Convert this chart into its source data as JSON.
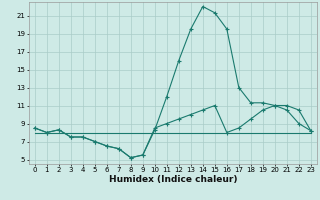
{
  "xlabel": "Humidex (Indice chaleur)",
  "background_color": "#ceeae6",
  "grid_color": "#aaccc8",
  "line_color": "#1a7a6e",
  "x_ticks": [
    0,
    1,
    2,
    3,
    4,
    5,
    6,
    7,
    8,
    9,
    10,
    11,
    12,
    13,
    14,
    15,
    16,
    17,
    18,
    19,
    20,
    21,
    22,
    23
  ],
  "y_ticks": [
    5,
    7,
    9,
    11,
    13,
    15,
    17,
    19,
    21
  ],
  "ylim": [
    4.5,
    22.5
  ],
  "xlim": [
    -0.5,
    23.5
  ],
  "series": [
    {
      "x": [
        0,
        1,
        2,
        3,
        4,
        5,
        6,
        7,
        8,
        9,
        10,
        11,
        12,
        13,
        14,
        15,
        16,
        17,
        18,
        19,
        20,
        21,
        22,
        23
      ],
      "y": [
        8.5,
        8.0,
        8.3,
        7.5,
        7.5,
        7.0,
        6.5,
        6.2,
        5.2,
        5.5,
        8.3,
        12.0,
        16.0,
        19.5,
        22.0,
        21.3,
        19.5,
        13.0,
        11.3,
        11.3,
        11.0,
        10.5,
        9.0,
        8.2
      ],
      "marker": true
    },
    {
      "x": [
        0,
        1,
        2,
        3,
        4,
        5,
        6,
        7,
        8,
        9,
        10,
        11,
        12,
        13,
        14,
        15,
        16,
        17,
        18,
        19,
        20,
        21,
        22,
        23
      ],
      "y": [
        8.5,
        8.0,
        8.3,
        7.5,
        7.5,
        7.0,
        6.5,
        6.2,
        5.2,
        5.5,
        8.5,
        9.0,
        9.5,
        10.0,
        10.5,
        11.0,
        8.0,
        8.5,
        9.5,
        10.5,
        11.0,
        11.0,
        10.5,
        8.2
      ],
      "marker": true
    },
    {
      "x": [
        0,
        23
      ],
      "y": [
        8.0,
        8.0
      ],
      "marker": false
    }
  ],
  "xlabel_fontsize": 6.5,
  "tick_fontsize": 5.0
}
